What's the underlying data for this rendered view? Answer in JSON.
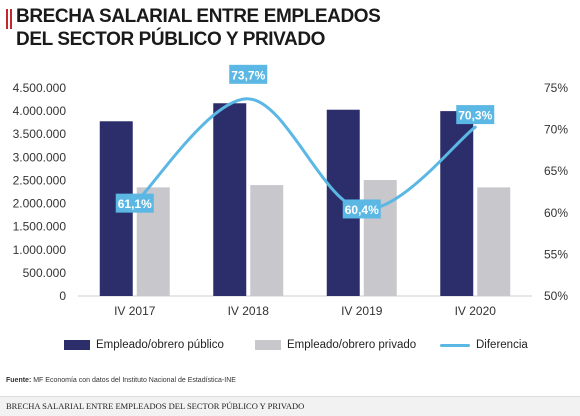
{
  "page": {
    "title_line1": "BRECHA SALARIAL ENTRE EMPLEADOS",
    "title_line2": "DEL SECTOR PÚBLICO Y PRIVADO",
    "source_label": "Fuente:",
    "source_text": " MF Economía con datos del Instituto Nacional de Estadística-INE",
    "caption": "BRECHA SALARIAL ENTRE EMPLEADOS DEL SECTOR PÚBLICO Y PRIVADO"
  },
  "colors": {
    "title_accent": "#c2272d",
    "publico": "#2b2e6b",
    "privado": "#c8c7cc",
    "diferencia": "#5bb7e3"
  },
  "legend": {
    "publico": "Empleado/obrero público",
    "privado": "Empleado/obrero privado",
    "diferencia": "Diferencia"
  },
  "chart_data": {
    "type": "bar",
    "categories": [
      "IV 2017",
      "IV 2018",
      "IV 2019",
      "IV 2020"
    ],
    "series": [
      {
        "name": "Empleado/obrero público",
        "type": "bar",
        "axis": "left",
        "values": [
          3780000,
          4170000,
          4030000,
          4000000
        ]
      },
      {
        "name": "Empleado/obrero privado",
        "type": "bar",
        "axis": "left",
        "values": [
          2350000,
          2400000,
          2510000,
          2350000
        ]
      },
      {
        "name": "Diferencia",
        "type": "line",
        "axis": "right",
        "values": [
          61.1,
          73.7,
          60.4,
          70.3
        ],
        "labels": [
          "61,1%",
          "73,7%",
          "60,4%",
          "70,3%"
        ]
      }
    ],
    "y_left": {
      "ylim": [
        0,
        4500000
      ],
      "ticks": [
        0,
        500000,
        1000000,
        1500000,
        2000000,
        2500000,
        3000000,
        3500000,
        4000000,
        4500000
      ],
      "tick_labels": [
        "0",
        "500.000",
        "1.000.000",
        "1.500.000",
        "2.000.000",
        "2.500.000",
        "3.000.000",
        "3.500.000",
        "4.000.000",
        "4.500.000"
      ]
    },
    "y_right": {
      "ylim": [
        50,
        75
      ],
      "ticks": [
        50,
        55,
        60,
        65,
        70,
        75
      ],
      "tick_labels": [
        "50%",
        "55%",
        "60%",
        "65%",
        "70%",
        "75%"
      ]
    },
    "grid": false,
    "legend_position": "bottom"
  }
}
